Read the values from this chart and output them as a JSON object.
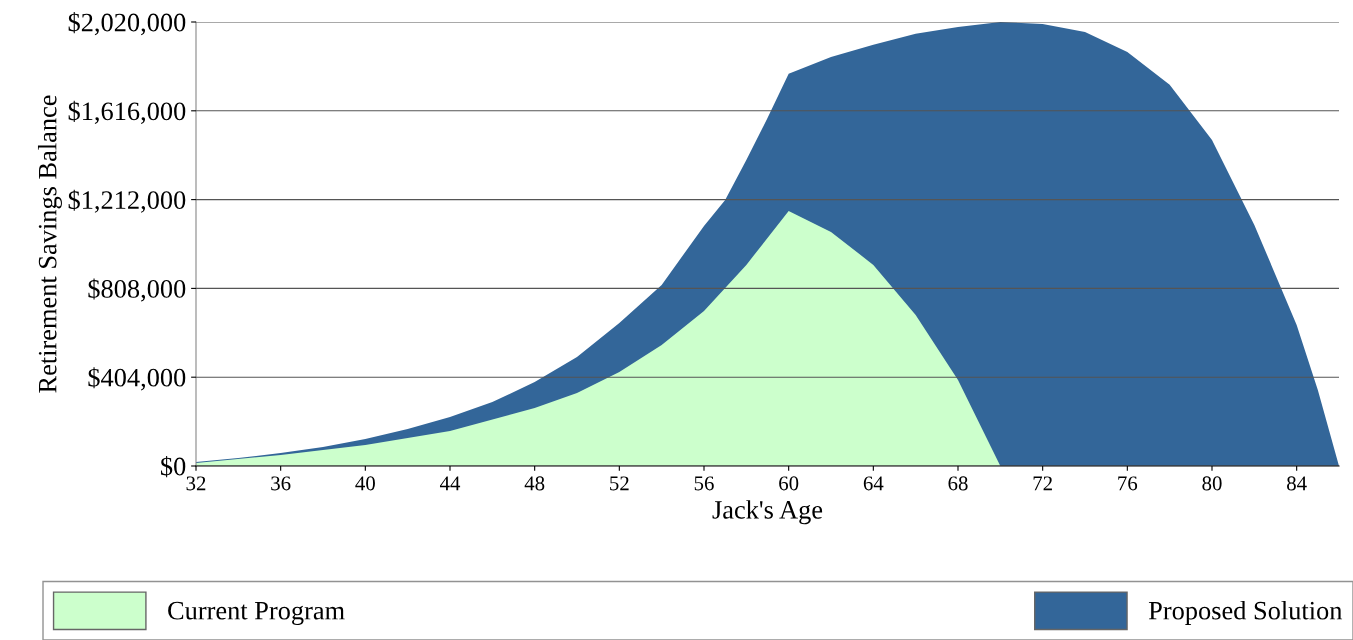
{
  "chart_data": {
    "type": "area",
    "xlabel": "Jack's Age",
    "ylabel": "Retirement Savings Balance",
    "series": [
      {
        "name": "Proposed Solution",
        "color": "#336699",
        "x": [
          32,
          34,
          36,
          38,
          40,
          42,
          44,
          46,
          48,
          50,
          52,
          54,
          56,
          57,
          58,
          59,
          60,
          62,
          64,
          66,
          68,
          70,
          72,
          74,
          76,
          78,
          80,
          82,
          84,
          85,
          86
        ],
        "values": [
          18000,
          36000,
          59000,
          86000,
          123000,
          168000,
          223000,
          291000,
          382000,
          496000,
          651000,
          824000,
          1092000,
          1210000,
          1392000,
          1583000,
          1784000,
          1861000,
          1916000,
          1966000,
          1997000,
          2020000,
          2011000,
          1975000,
          1884000,
          1734000,
          1483000,
          1097000,
          642000,
          346000,
          0
        ]
      },
      {
        "name": "Current Program",
        "color": "#ccffcc",
        "x": [
          32,
          36,
          40,
          44,
          48,
          50,
          52,
          54,
          56,
          58,
          60,
          62,
          64,
          66,
          68,
          70
        ],
        "values": [
          14000,
          50000,
          96000,
          159000,
          264000,
          332000,
          428000,
          551000,
          705000,
          915000,
          1160000,
          1065000,
          915000,
          687000,
          391000,
          0
        ]
      }
    ],
    "xlim": [
      32,
      86
    ],
    "xticks": [
      32,
      36,
      40,
      44,
      48,
      52,
      56,
      60,
      64,
      68,
      72,
      76,
      80,
      84
    ],
    "ylim": [
      0,
      2020000
    ],
    "yticks": [
      {
        "value": 0,
        "label": "$0"
      },
      {
        "value": 404000,
        "label": "$404,000"
      },
      {
        "value": 808000,
        "label": "$808,000"
      },
      {
        "value": 1212000,
        "label": "$1,212,000"
      },
      {
        "value": 1616000,
        "label": "$1,616,000"
      },
      {
        "value": 2020000,
        "label": "$2,020,000"
      }
    ],
    "grid": "y",
    "legend": "bottom"
  }
}
